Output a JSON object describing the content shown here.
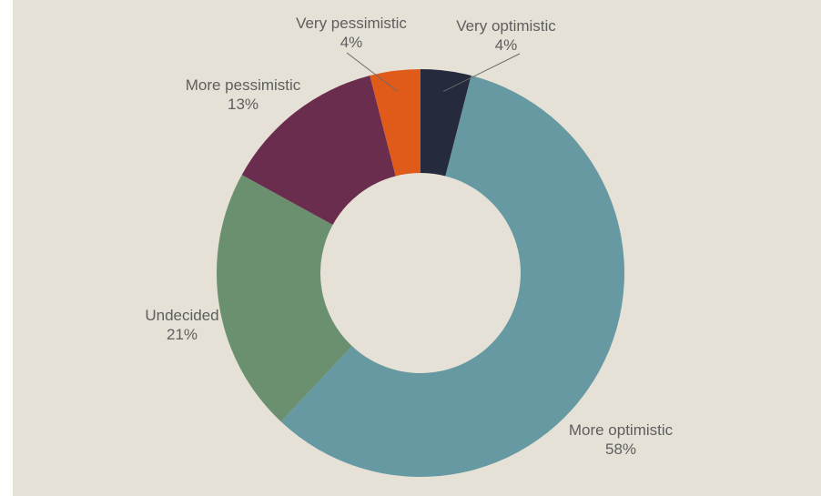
{
  "chart_data": {
    "type": "pie",
    "donut": true,
    "title": "",
    "start_angle_deg": 0,
    "direction": "clockwise",
    "legend": "none",
    "slices": [
      {
        "label": "Very optimistic",
        "value": 4,
        "value_label": "4%",
        "color": "#252a3c"
      },
      {
        "label": "More optimistic",
        "value": 58,
        "value_label": "58%",
        "color": "#6699a2"
      },
      {
        "label": "Undecided",
        "value": 21,
        "value_label": "21%",
        "color": "#6b9070"
      },
      {
        "label": "More pessimistic",
        "value": 13,
        "value_label": "13%",
        "color": "#6a2d4e"
      },
      {
        "label": "Very pessimistic",
        "value": 4,
        "value_label": "4%",
        "color": "#e05a1a"
      }
    ]
  },
  "colors": {
    "background": "#e6e1d6",
    "label_text": "#5e5e5e",
    "leader_line": "#6b6b6b"
  }
}
